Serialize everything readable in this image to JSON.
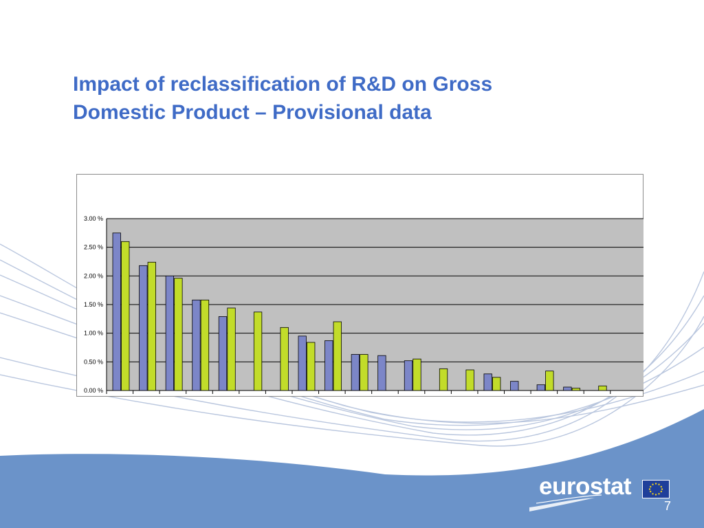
{
  "slide": {
    "title_line1": "Impact of reclassification of R&D on Gross",
    "title_line2": "Domestic Product – Provisional data",
    "page_number": "7",
    "logo_text": "eurostat"
  },
  "colors": {
    "title": "#3f6bc6",
    "series1": "#7c86c8",
    "series2": "#c2dc2a",
    "plot_area": "#c0c0c0",
    "footer_band": "#6b93c9"
  },
  "chart_data": {
    "type": "bar",
    "categories": [
      "",
      "",
      "",
      "",
      "",
      "",
      "",
      "",
      "",
      "",
      "",
      "",
      "",
      "",
      "",
      "",
      "",
      "",
      ""
    ],
    "series": [
      {
        "values": [
          2.75,
          2.18,
          2.0,
          1.58,
          1.29,
          null,
          null,
          0.95,
          0.87,
          0.63,
          0.61,
          0.52,
          null,
          null,
          0.29,
          0.16,
          0.1,
          0.06,
          null
        ]
      },
      {
        "values": [
          2.6,
          2.24,
          1.96,
          1.58,
          1.44,
          1.37,
          1.1,
          0.84,
          1.2,
          0.63,
          null,
          0.55,
          0.38,
          0.36,
          0.23,
          null,
          0.34,
          0.04,
          0.08
        ]
      }
    ],
    "yticks": [
      "3.00 %",
      "2.50 %",
      "2.00 %",
      "1.50 %",
      "1.00 %",
      "0.50 %",
      "0.00 %"
    ],
    "ylim": [
      0,
      3.0
    ],
    "grid": true,
    "xlabel": "",
    "ylabel": ""
  }
}
